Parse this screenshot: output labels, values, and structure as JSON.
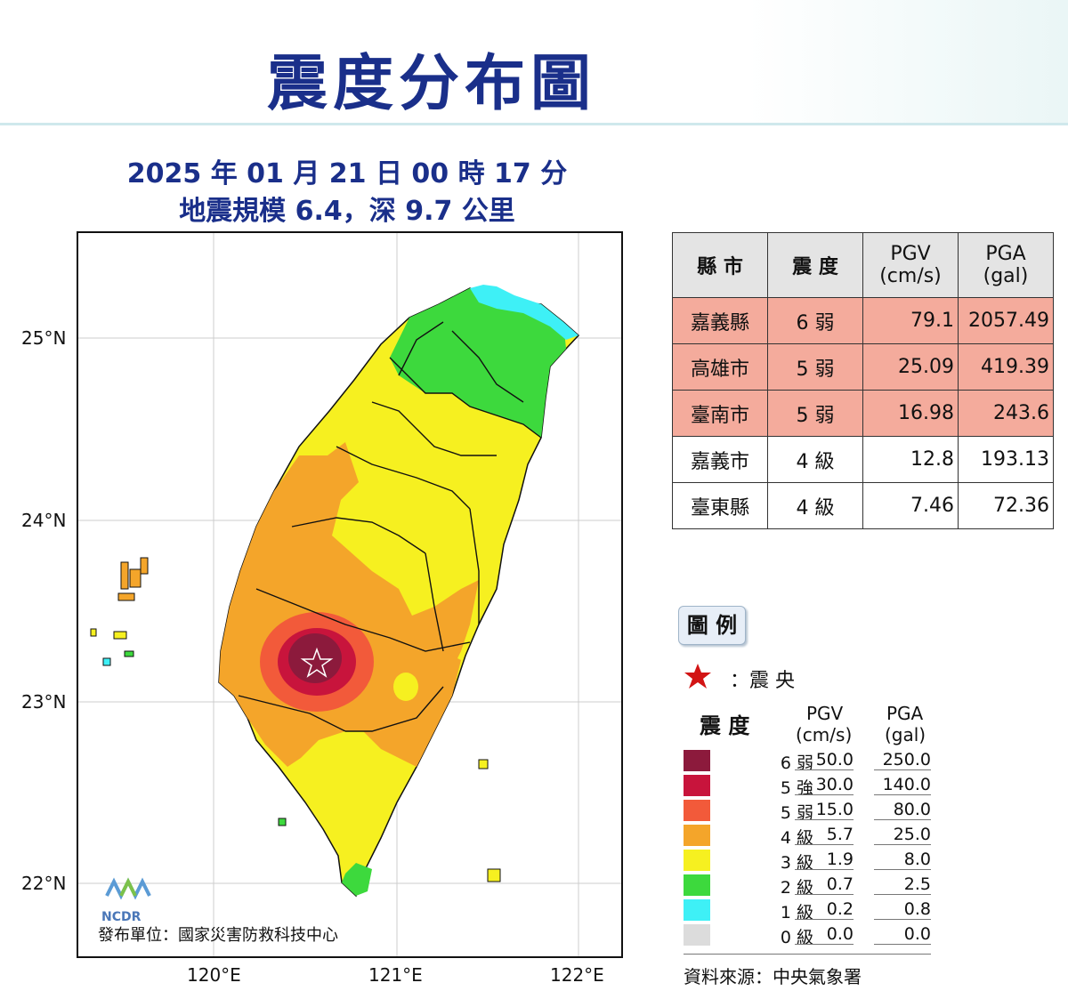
{
  "title": "震度分布圖",
  "event": {
    "datetime": "2025 年 01 月 21 日 00 時 17 分",
    "magnitude_depth": "地震規模 6.4，深 9.7 公里"
  },
  "map": {
    "lat_labels": [
      "25°N",
      "24°N",
      "23°N",
      "22°N"
    ],
    "lon_labels": [
      "120°E",
      "121°E",
      "122°E"
    ],
    "publisher": "發布單位：國家災害防救科技中心",
    "logo_text": "NCDR"
  },
  "table": {
    "headers": {
      "county": "縣 市",
      "intensity": "震 度",
      "pgv_line1": "PGV",
      "pgv_line2": "(cm/s)",
      "pga_line1": "PGA",
      "pga_line2": "(gal)"
    },
    "rows": [
      {
        "county": "嘉義縣",
        "intensity": "6 弱",
        "pgv": "79.1",
        "pga": "2057.49",
        "bg": "#f4ab9c"
      },
      {
        "county": "高雄市",
        "intensity": "5 弱",
        "pgv": "25.09",
        "pga": "419.39",
        "bg": "#f4ab9c"
      },
      {
        "county": "臺南市",
        "intensity": "5 弱",
        "pgv": "16.98",
        "pga": "243.6",
        "bg": "#f4ab9c"
      },
      {
        "county": "嘉義市",
        "intensity": "4 級",
        "pgv": "12.8",
        "pga": "193.13",
        "bg": "#ffffff"
      },
      {
        "county": "臺東縣",
        "intensity": "4 級",
        "pgv": "7.46",
        "pga": "72.36",
        "bg": "#ffffff"
      }
    ]
  },
  "legend": {
    "label": "圖 例",
    "epicenter": "：震 央",
    "intensity_header": "震 度",
    "pgv_header_1": "PGV",
    "pgv_header_2": "(cm/s)",
    "pga_header_1": "PGA",
    "pga_header_2": "(gal)",
    "levels": [
      {
        "label": "6 弱",
        "pgv": "50.0",
        "pga": "250.0",
        "color": "#8c1a3c"
      },
      {
        "label": "5 強",
        "pgv": "30.0",
        "pga": "140.0",
        "color": "#c8143c"
      },
      {
        "label": "5 弱",
        "pgv": "15.0",
        "pga": "80.0",
        "color": "#f25a3a"
      },
      {
        "label": "4 級",
        "pgv": "5.7",
        "pga": "25.0",
        "color": "#f4a52a"
      },
      {
        "label": "3 級",
        "pgv": "1.9",
        "pga": "8.0",
        "color": "#f6f020"
      },
      {
        "label": "2 級",
        "pgv": "0.7",
        "pga": "2.5",
        "color": "#3dd93d"
      },
      {
        "label": "1 級",
        "pgv": "0.2",
        "pga": "0.8",
        "color": "#3ef0f6"
      },
      {
        "label": "0 級",
        "pgv": "0.0",
        "pga": "0.0",
        "color": "#dcdcdc"
      }
    ]
  },
  "source": "資料來源：中央氣象署",
  "colors": {
    "title_blue": "#1a2f8a",
    "epicenter_red": "#d21414"
  }
}
